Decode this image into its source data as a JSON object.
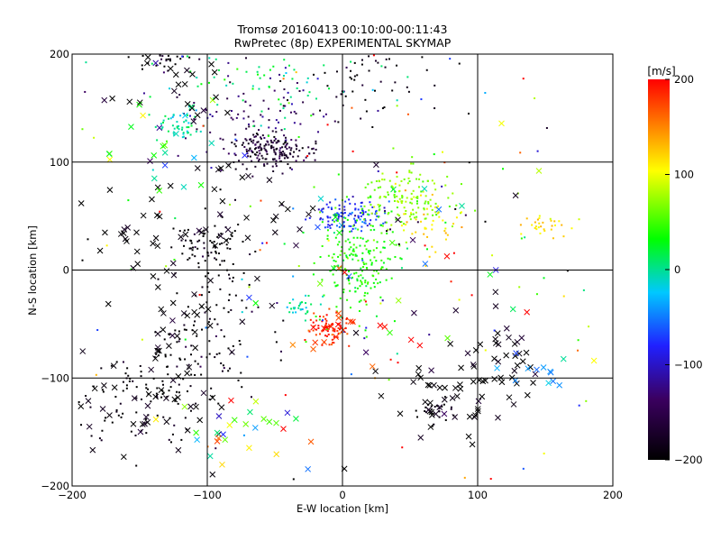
{
  "chart_data": {
    "type": "scatter",
    "title": "Tromsø 20160413 00:10:00-00:11:43",
    "subtitle": "RwPretec (8p) EXPERIMENTAL SKYMAP",
    "xlabel": "E-W location [km]",
    "ylabel": "N-S location [km]",
    "xlim": [
      -200,
      200
    ],
    "ylim": [
      -200,
      200
    ],
    "x_ticks": [
      -200,
      -100,
      0,
      100,
      200
    ],
    "y_ticks": [
      -200,
      -100,
      0,
      100,
      200
    ],
    "grid": true,
    "colorbar": {
      "label": "[m/s]",
      "range": [
        -200,
        200
      ],
      "ticks": [
        200,
        100,
        0,
        -100,
        -200
      ],
      "colormap": [
        "#000000",
        "#3b0060",
        "#2020ff",
        "#00c8ff",
        "#00ff00",
        "#ffff00",
        "#ff0000"
      ]
    },
    "clusters": [
      {
        "cx": -55,
        "cy": 110,
        "sx": 14,
        "sy": 9,
        "v": -175,
        "n": 180,
        "mark": "dot"
      },
      {
        "cx": -75,
        "cy": 150,
        "sx": 30,
        "sy": 20,
        "v": -150,
        "n": 90,
        "mark": "dot"
      },
      {
        "cx": -120,
        "cy": 132,
        "sx": 8,
        "sy": 6,
        "v": -30,
        "n": 50,
        "mark": "dot"
      },
      {
        "cx": -60,
        "cy": 170,
        "sx": 35,
        "sy": 18,
        "v": -20,
        "n": 60,
        "mark": "dot"
      },
      {
        "cx": 5,
        "cy": 50,
        "sx": 12,
        "sy": 7,
        "v": -95,
        "n": 120,
        "mark": "dot"
      },
      {
        "cx": 45,
        "cy": 65,
        "sx": 20,
        "sy": 15,
        "v": 50,
        "n": 150,
        "mark": "dot"
      },
      {
        "cx": 65,
        "cy": 40,
        "sx": 12,
        "sy": 12,
        "v": 110,
        "n": 40,
        "mark": "dot"
      },
      {
        "cx": 15,
        "cy": 5,
        "sx": 14,
        "sy": 25,
        "v": 10,
        "n": 200,
        "mark": "dot"
      },
      {
        "cx": -10,
        "cy": -55,
        "sx": 8,
        "sy": 7,
        "v": 185,
        "n": 80,
        "mark": "dot"
      },
      {
        "cx": -30,
        "cy": -35,
        "sx": 7,
        "sy": 6,
        "v": -30,
        "n": 30,
        "mark": "dot"
      },
      {
        "cx": -100,
        "cy": 25,
        "sx": 10,
        "sy": 10,
        "v": -200,
        "n": 60,
        "mark": "dot"
      },
      {
        "cx": -95,
        "cy": -30,
        "sx": 18,
        "sy": 40,
        "v": -200,
        "n": 90,
        "mark": "dot"
      },
      {
        "cx": -150,
        "cy": -115,
        "sx": 30,
        "sy": 25,
        "v": -200,
        "n": 90,
        "mark": "dot"
      },
      {
        "cx": -130,
        "cy": -80,
        "sx": 20,
        "sy": 20,
        "v": -200,
        "n": 40,
        "mark": "dot"
      },
      {
        "cx": 10,
        "cy": 175,
        "sx": 20,
        "sy": 20,
        "v": -200,
        "n": 60,
        "mark": "dot"
      },
      {
        "cx": 150,
        "cy": 42,
        "sx": 10,
        "sy": 5,
        "v": 110,
        "n": 30,
        "mark": "dot"
      },
      {
        "cx": -130,
        "cy": 195,
        "sx": 10,
        "sy": 5,
        "v": -200,
        "n": 25,
        "mark": "dot"
      },
      {
        "cx": 70,
        "cy": -130,
        "sx": 8,
        "sy": 8,
        "v": -200,
        "n": 25,
        "mark": "dot"
      },
      {
        "cx": 0,
        "cy": 100,
        "sx": 120,
        "sy": 90,
        "v": 0,
        "n": 120,
        "vs": 150,
        "mark": "dot"
      },
      {
        "cx": 0,
        "cy": -60,
        "sx": 130,
        "sy": 90,
        "v": 0,
        "n": 80,
        "vs": 150,
        "mark": "dot"
      },
      {
        "cx": 70,
        "cy": -115,
        "sx": 20,
        "sy": 18,
        "v": -200,
        "n": 40,
        "mark": "x"
      },
      {
        "cx": 120,
        "cy": -80,
        "sx": 22,
        "sy": 25,
        "v": -200,
        "n": 45,
        "mark": "x"
      },
      {
        "cx": 150,
        "cy": -95,
        "sx": 15,
        "sy": 15,
        "v": -60,
        "n": 12,
        "mark": "x"
      },
      {
        "cx": -140,
        "cy": -120,
        "sx": 30,
        "sy": 30,
        "v": -200,
        "n": 45,
        "mark": "x"
      },
      {
        "cx": -150,
        "cy": 30,
        "sx": 20,
        "sy": 20,
        "v": -200,
        "n": 25,
        "mark": "x"
      },
      {
        "cx": -60,
        "cy": 60,
        "sx": 30,
        "sy": 20,
        "v": -200,
        "n": 25,
        "mark": "x"
      },
      {
        "cx": -120,
        "cy": -30,
        "sx": 25,
        "sy": 35,
        "v": -200,
        "n": 35,
        "mark": "x"
      },
      {
        "cx": -60,
        "cy": -150,
        "sx": 40,
        "sy": 15,
        "v": 60,
        "n": 30,
        "vs": 120,
        "mark": "x"
      },
      {
        "cx": -120,
        "cy": 120,
        "sx": 25,
        "sy": 25,
        "v": -20,
        "n": 25,
        "vs": 80,
        "mark": "x"
      },
      {
        "cx": 50,
        "cy": 20,
        "sx": 50,
        "sy": 50,
        "v": 0,
        "n": 40,
        "vs": 150,
        "mark": "x"
      },
      {
        "cx": -130,
        "cy": 180,
        "sx": 20,
        "sy": 20,
        "v": -200,
        "n": 25,
        "mark": "x"
      },
      {
        "cx": -5,
        "cy": -60,
        "sx": 12,
        "sy": 10,
        "v": 180,
        "n": 15,
        "mark": "x"
      }
    ]
  }
}
